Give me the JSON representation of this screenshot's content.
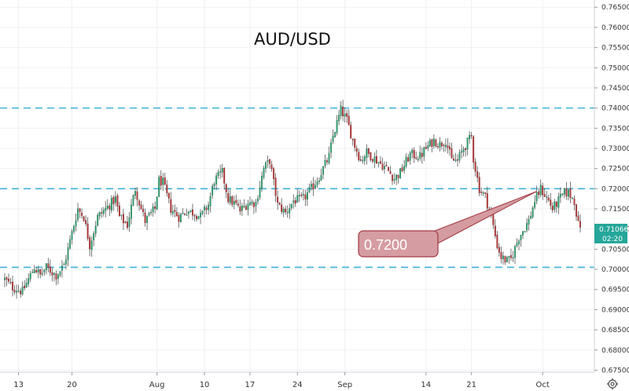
{
  "chart_data": {
    "type": "candlestick",
    "title": "AUD/USD",
    "ylim": [
      0.6745,
      0.7668
    ],
    "y_ticks": [
      "0.67500",
      "0.68000",
      "0.68500",
      "0.69000",
      "0.69500",
      "0.70000",
      "0.70500",
      "0.71000",
      "0.71500",
      "0.72000",
      "0.72500",
      "0.73000",
      "0.73500",
      "0.74000",
      "0.74500",
      "0.75000",
      "0.75500",
      "0.76000",
      "0.76500"
    ],
    "x_ticks": [
      "13",
      "20",
      "Aug",
      "10",
      "17",
      "24",
      "Sep",
      "14",
      "21",
      "Oct"
    ],
    "levels": [
      0.74,
      0.72,
      0.7005
    ],
    "price_tag": {
      "value": "0.71066",
      "timer": "02:20"
    },
    "annotation": {
      "text": "0.7200"
    },
    "series_path": [
      [
        0,
        0.6975
      ],
      [
        4,
        0.6955
      ],
      [
        9,
        0.6945
      ],
      [
        12,
        0.6975
      ],
      [
        15,
        0.7005
      ],
      [
        18,
        0.6985
      ],
      [
        21,
        0.7005
      ],
      [
        26,
        0.6985
      ],
      [
        30,
        0.701
      ],
      [
        37,
        0.715
      ],
      [
        40,
        0.713
      ],
      [
        43,
        0.706
      ],
      [
        47,
        0.713
      ],
      [
        51,
        0.715
      ],
      [
        56,
        0.7175
      ],
      [
        58,
        0.713
      ],
      [
        62,
        0.711
      ],
      [
        66,
        0.72
      ],
      [
        69,
        0.715
      ],
      [
        71,
        0.712
      ],
      [
        76,
        0.715
      ],
      [
        78,
        0.722
      ],
      [
        80,
        0.7215
      ],
      [
        84,
        0.715
      ],
      [
        88,
        0.713
      ],
      [
        92,
        0.7145
      ],
      [
        96,
        0.714
      ],
      [
        99,
        0.713
      ],
      [
        103,
        0.716
      ],
      [
        106,
        0.722
      ],
      [
        110,
        0.724
      ],
      [
        113,
        0.7175
      ],
      [
        117,
        0.716
      ],
      [
        119,
        0.7145
      ],
      [
        123,
        0.7165
      ],
      [
        127,
        0.7165
      ],
      [
        131,
        0.725
      ],
      [
        134,
        0.727
      ],
      [
        138,
        0.716
      ],
      [
        142,
        0.714
      ],
      [
        146,
        0.717
      ],
      [
        151,
        0.7175
      ],
      [
        155,
        0.72
      ],
      [
        159,
        0.723
      ],
      [
        164,
        0.728
      ],
      [
        166,
        0.733
      ],
      [
        170,
        0.7395
      ],
      [
        173,
        0.737
      ],
      [
        176,
        0.732
      ],
      [
        180,
        0.727
      ],
      [
        183,
        0.729
      ],
      [
        187,
        0.7275
      ],
      [
        193,
        0.725
      ],
      [
        197,
        0.7225
      ],
      [
        200,
        0.724
      ],
      [
        205,
        0.7285
      ],
      [
        210,
        0.728
      ],
      [
        213,
        0.73
      ],
      [
        217,
        0.732
      ],
      [
        220,
        0.731
      ],
      [
        223,
        0.732
      ],
      [
        226,
        0.727
      ],
      [
        229,
        0.727
      ],
      [
        232,
        0.73
      ],
      [
        236,
        0.733
      ],
      [
        237,
        0.7275
      ],
      [
        240,
        0.72
      ],
      [
        243,
        0.718
      ],
      [
        246,
        0.713
      ],
      [
        249,
        0.706
      ],
      [
        251,
        0.703
      ],
      [
        254,
        0.702
      ],
      [
        256,
        0.7025
      ],
      [
        260,
        0.708
      ],
      [
        265,
        0.712
      ],
      [
        268,
        0.717
      ],
      [
        271,
        0.72
      ],
      [
        275,
        0.717
      ],
      [
        277,
        0.715
      ],
      [
        280,
        0.717
      ],
      [
        283,
        0.719
      ],
      [
        285,
        0.719
      ],
      [
        288,
        0.717
      ],
      [
        290,
        0.711
      ]
    ]
  }
}
